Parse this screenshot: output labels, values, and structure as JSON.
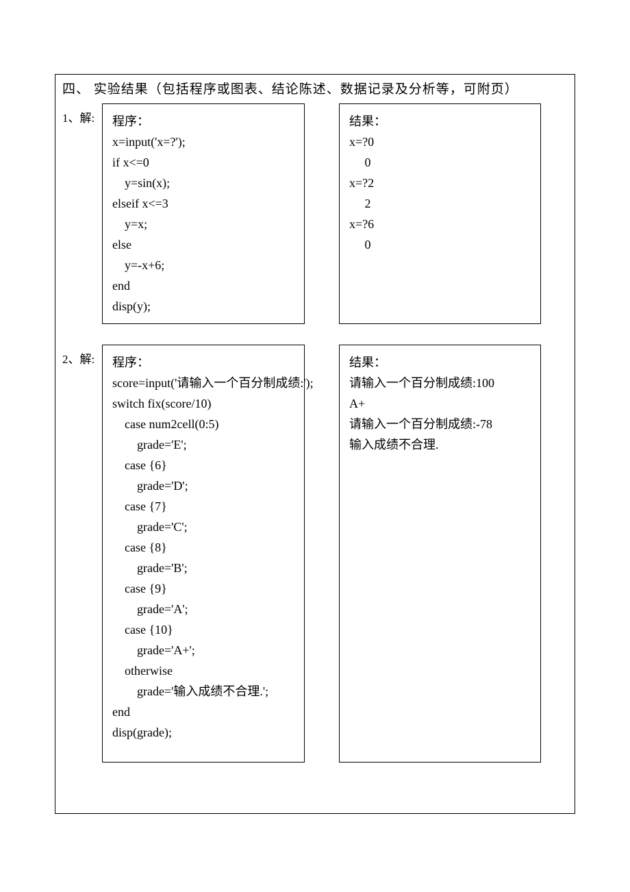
{
  "section": {
    "number": "四、",
    "title": "实验结果（包括程序或图表、结论陈述、数据记录及分析等，可附页）"
  },
  "problems": [
    {
      "label": "1、解:",
      "code_title": "程序：",
      "code_lines": [
        "x=input('x=?');",
        "if x<=0",
        "    y=sin(x);",
        "elseif x<=3",
        "    y=x;",
        "else",
        "    y=-x+6;",
        "end",
        "disp(y);"
      ],
      "result_title": "结果：",
      "result_lines": [
        "x=?0",
        "     0",
        "",
        "x=?2",
        "     2",
        "",
        "x=?6",
        "     0"
      ]
    },
    {
      "label": "2、解:",
      "code_title": "程序：",
      "code_lines": [
        "score=input('请输入一个百分制成绩:');",
        "switch fix(score/10)",
        "    case num2cell(0:5)",
        "        grade='E';",
        "    case {6}",
        "        grade='D';",
        "    case {7}",
        "        grade='C';",
        "    case {8}",
        "        grade='B';",
        "    case {9}",
        "        grade='A';",
        "    case {10}",
        "        grade='A+';",
        "    otherwise",
        "        grade='输入成绩不合理.';",
        "end",
        "disp(grade);"
      ],
      "result_title": "结果：",
      "result_lines": [
        "请输入一个百分制成绩:100",
        "A+",
        "请输入一个百分制成绩:-78",
        "输入成绩不合理."
      ]
    }
  ]
}
